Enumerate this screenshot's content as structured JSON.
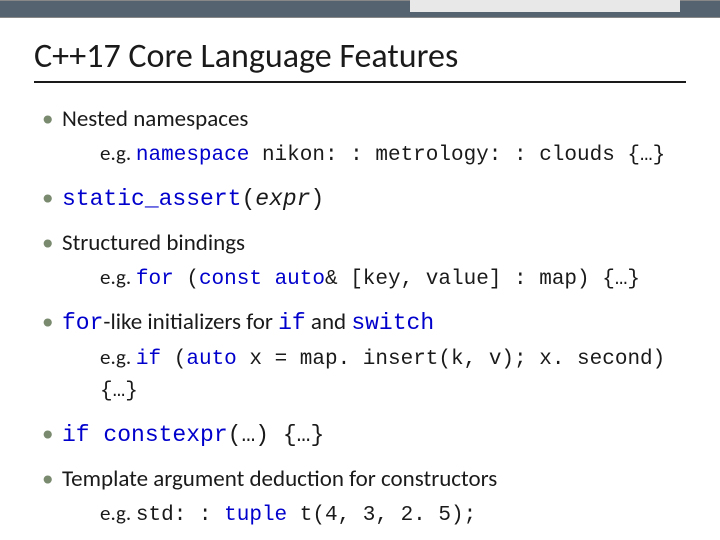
{
  "title": "C++17 Core Language Features",
  "bullets": [
    {
      "main": "Nested namespaces",
      "sub_prefix": "e.g. ",
      "sub_kw": "namespace",
      "sub_rest": " nikon: : metrology: : clouds {…}"
    },
    {
      "main_kw": "static_assert",
      "main_rest1": "(",
      "main_italic": "expr",
      "main_rest2": ")"
    },
    {
      "main": "Structured bindings",
      "sub_prefix": "e.g. ",
      "sub_kw1": "for",
      "sub_mid1": " (",
      "sub_kw2": "const auto",
      "sub_rest": "& [key, value] : map) {…}"
    },
    {
      "main_kw1": "for",
      "main_mid1": "-like initializers for ",
      "main_kw2": "if",
      "main_mid2": " and ",
      "main_kw3": "switch",
      "sub_prefix": "e.g. ",
      "sub_kw1": "if",
      "sub_mid1": " (",
      "sub_kw2": "auto",
      "sub_rest": " x = map. insert(k, v); x. second) {…}"
    },
    {
      "main_kw1": "if constexpr",
      "main_rest": "(…) {…}"
    },
    {
      "main": "Template argument deduction for constructors",
      "sub_prefix": "e.g. ",
      "sub_mono1": "std: : ",
      "sub_kw1": "tuple",
      "sub_rest": " t(4, 3, 2. 5);"
    }
  ]
}
